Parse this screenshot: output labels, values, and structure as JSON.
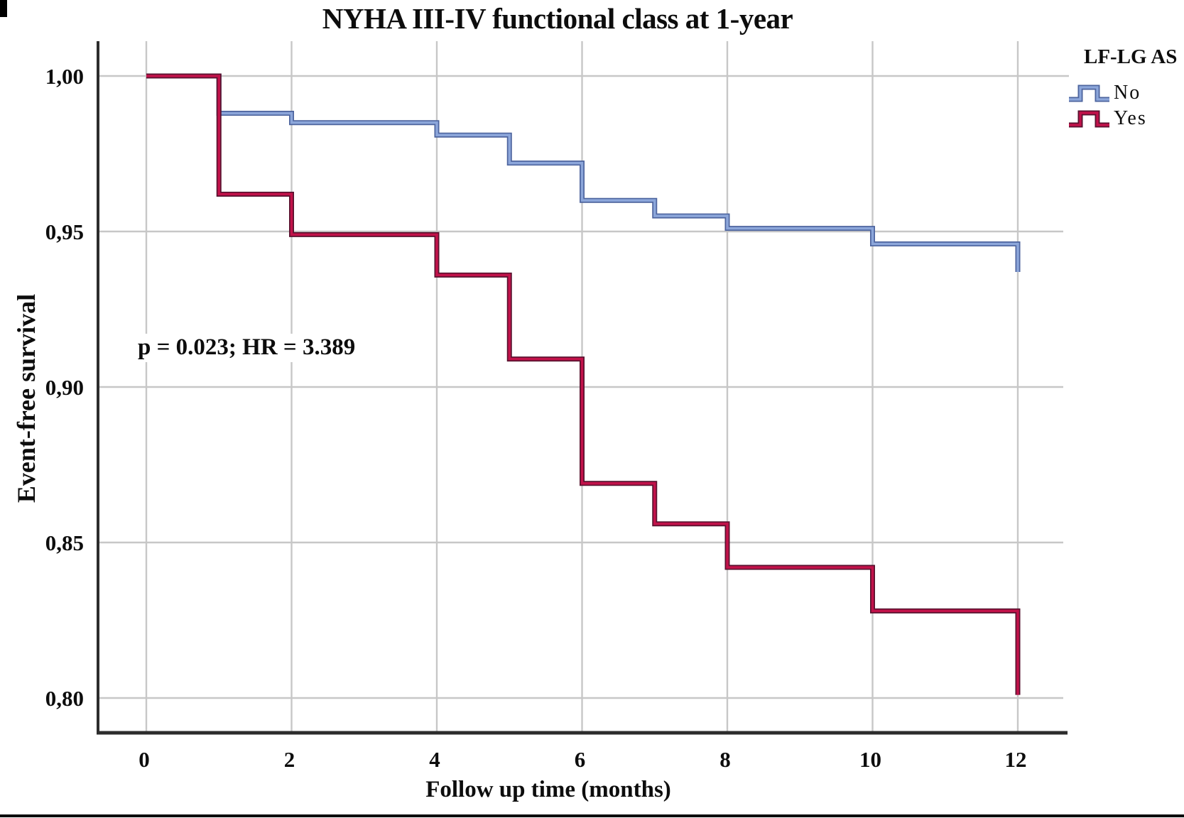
{
  "chart_data": {
    "type": "line",
    "subtype": "kaplan-meier-step",
    "title": "NYHA III-IV functional class at 1-year",
    "xlabel": "Follow up time (months)",
    "ylabel": "Event-free survival",
    "annotation": "p = 0.023; HR = 3.389",
    "xlim": [
      0,
      12.6
    ],
    "ylim": [
      0.789,
      1.011
    ],
    "grid": true,
    "x_ticks": [
      {
        "v": 0,
        "label": "0"
      },
      {
        "v": 2,
        "label": "2"
      },
      {
        "v": 4,
        "label": "4"
      },
      {
        "v": 6,
        "label": "6"
      },
      {
        "v": 8,
        "label": "8"
      },
      {
        "v": 10,
        "label": "10"
      },
      {
        "v": 12,
        "label": "12"
      }
    ],
    "y_ticks": [
      {
        "v": 1.0,
        "label": "1,00"
      },
      {
        "v": 0.95,
        "label": "0,95"
      },
      {
        "v": 0.9,
        "label": "0,90"
      },
      {
        "v": 0.85,
        "label": "0,85"
      },
      {
        "v": 0.8,
        "label": "0,80"
      }
    ],
    "legend": {
      "title": "LF-LG AS",
      "position": "top-right",
      "items": [
        {
          "label": "No",
          "color": "#8ca6da",
          "edge": "#4d649e"
        },
        {
          "label": "Yes",
          "color": "#c2124a",
          "edge": "#58122f"
        }
      ]
    },
    "series": [
      {
        "name": "No",
        "color": "#8ca6da",
        "edge": "#4d649e",
        "steps": [
          [
            0,
            1.0
          ],
          [
            1,
            0.988
          ],
          [
            2,
            0.985
          ],
          [
            4,
            0.981
          ],
          [
            5,
            0.972
          ],
          [
            6,
            0.96
          ],
          [
            7,
            0.955
          ],
          [
            8,
            0.951
          ],
          [
            10,
            0.946
          ],
          [
            12,
            0.937
          ]
        ]
      },
      {
        "name": "Yes",
        "color": "#c2124a",
        "edge": "#58122f",
        "steps": [
          [
            0,
            1.0
          ],
          [
            1,
            0.962
          ],
          [
            2,
            0.949
          ],
          [
            4,
            0.936
          ],
          [
            5,
            0.909
          ],
          [
            6,
            0.869
          ],
          [
            7,
            0.856
          ],
          [
            8,
            0.842
          ],
          [
            10,
            0.828
          ],
          [
            12,
            0.801
          ]
        ]
      }
    ],
    "colors": {
      "grid": "#c7c7c7",
      "axis": "#2d2d2d",
      "text": "#0d0d0d",
      "background": "#ffffff"
    }
  }
}
